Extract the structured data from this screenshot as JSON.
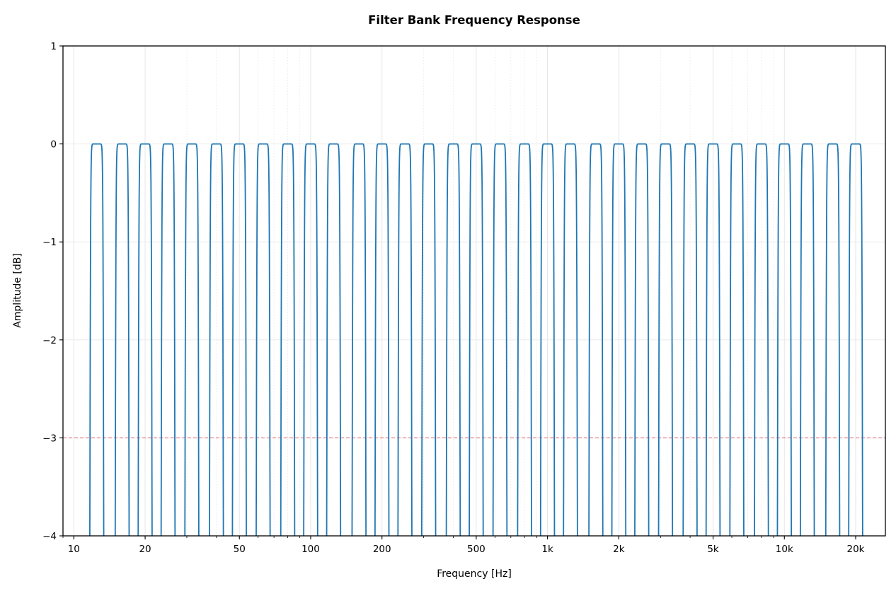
{
  "chart_data": {
    "type": "line",
    "title": "Filter Bank Frequency Response",
    "xlabel": "Frequency [Hz]",
    "ylabel": "Amplitude [dB]",
    "xscale": "log",
    "xlim": [
      9,
      26700
    ],
    "ylim": [
      -4,
      1
    ],
    "grid": true,
    "x_ticks": [
      {
        "value": 10,
        "label": "10"
      },
      {
        "value": 20,
        "label": "20"
      },
      {
        "value": 50,
        "label": "50"
      },
      {
        "value": 100,
        "label": "100"
      },
      {
        "value": 200,
        "label": "200"
      },
      {
        "value": 500,
        "label": "500"
      },
      {
        "value": 1000,
        "label": "1k"
      },
      {
        "value": 2000,
        "label": "2k"
      },
      {
        "value": 5000,
        "label": "5k"
      },
      {
        "value": 10000,
        "label": "10k"
      },
      {
        "value": 20000,
        "label": "20k"
      }
    ],
    "y_ticks": [
      {
        "value": 1,
        "label": "1"
      },
      {
        "value": 0,
        "label": "0"
      },
      {
        "value": -1,
        "label": "−1"
      },
      {
        "value": -2,
        "label": "−2"
      },
      {
        "value": -3,
        "label": "−3"
      },
      {
        "value": -4,
        "label": "−4"
      }
    ],
    "series": [
      {
        "color": "#1f77b4",
        "band_centers_hz": [
          12.5,
          16,
          20,
          25,
          31.5,
          40,
          50,
          63,
          80,
          100,
          125,
          160,
          200,
          250,
          315,
          400,
          500,
          630,
          800,
          1000,
          1250,
          1600,
          2000,
          2500,
          3150,
          4000,
          5000,
          6300,
          8000,
          10000,
          12500,
          16000,
          20000
        ],
        "passband_db": 0
      }
    ],
    "reference_lines": [
      {
        "y": -3,
        "color": "#d62728",
        "style": "dashed"
      }
    ]
  }
}
